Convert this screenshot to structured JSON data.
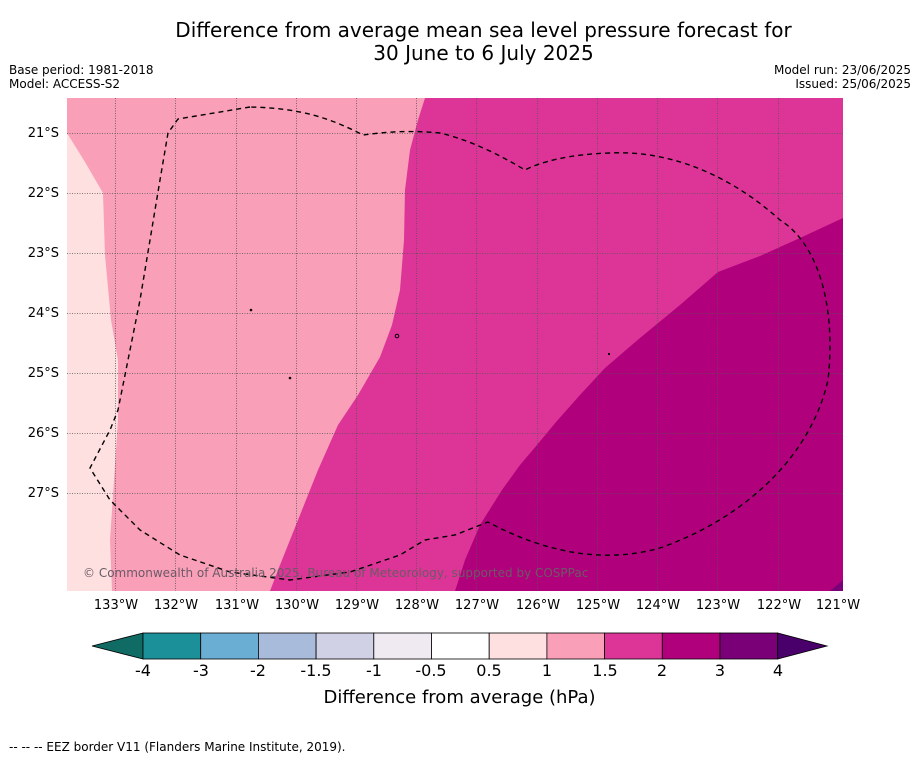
{
  "title_line1": "Difference from average mean sea level pressure forecast for",
  "title_line2": "30 June to 6 July 2025",
  "base_period": "Base period: 1981-2018",
  "model": "Model: ACCESS-S2",
  "model_run": "Model run: 23/06/2025",
  "issued": "Issued: 25/06/2025",
  "copyright": "© Commonwealth of Australia 2025, Bureau of Meteorology, supported by COSPPac",
  "lat_labels": [
    "21°S",
    "22°S",
    "23°S",
    "24°S",
    "25°S",
    "26°S",
    "27°S"
  ],
  "lon_labels": [
    "133°W",
    "132°W",
    "131°W",
    "130°W",
    "129°W",
    "128°W",
    "127°W",
    "126°W",
    "125°W",
    "124°W",
    "123°W",
    "122°W",
    "121°W"
  ],
  "colorbar": {
    "title": "Difference from average (hPa)",
    "ticks": [
      "-4",
      "-3",
      "-2",
      "-1.5",
      "-1",
      "-0.5",
      "0.5",
      "1",
      "1.5",
      "2",
      "3",
      "4"
    ],
    "colors": {
      "below_-4": "#0f6b63",
      "-4_-3": "#1b9098",
      "-3_-2": "#6aaed4",
      "-2_-1.5": "#a8bbdb",
      "-1.5_-1": "#d1d1e6",
      "-1_-0.5": "#efe9f2",
      "-0.5_0.5": "#ffffff",
      "0.5_1": "#fde0df",
      "1_1.5": "#f99fb8",
      "1.5_2": "#dd3597",
      "2_3": "#b0007c",
      "3_4": "#7a0077",
      "above_4": "#4a006a"
    }
  },
  "footer": "--  --  -- EEZ border V11 (Flanders Marine Institute, 2019)."
}
